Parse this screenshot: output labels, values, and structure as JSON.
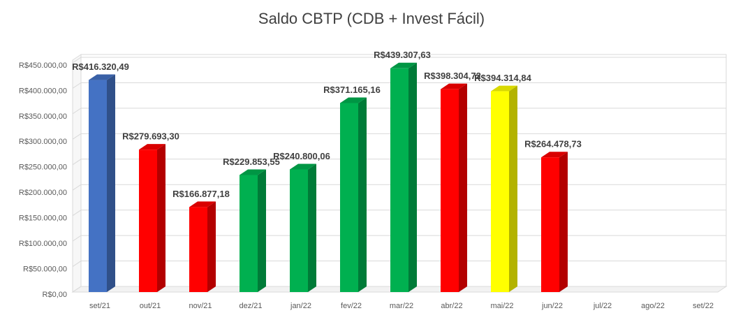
{
  "chart_data": {
    "type": "bar3d",
    "title": "Saldo CBTP (CDB + Invest Fácil)",
    "categories": [
      "set/21",
      "out/21",
      "nov/21",
      "dez/21",
      "jan/22",
      "fev/22",
      "mar/22",
      "abr/22",
      "mai/22",
      "jun/22",
      "jul/22",
      "ago/22",
      "set/22"
    ],
    "values": [
      416320.49,
      279693.3,
      166877.18,
      229853.55,
      240800.06,
      371165.16,
      439307.63,
      398304.72,
      394314.84,
      264478.73,
      null,
      null,
      null
    ],
    "value_labels": [
      "R$416.320,49",
      "R$279.693,30",
      "R$166.877,18",
      "R$229.853,55",
      "R$240.800,06",
      "R$371.165,16",
      "R$439.307,63",
      "R$398.304,72",
      "R$394.314,84",
      "R$264.478,73",
      null,
      null,
      null
    ],
    "colors": [
      "#4472c4",
      "#ff0000",
      "#ff0000",
      "#00b050",
      "#00b050",
      "#00b050",
      "#00b050",
      "#ff0000",
      "#ffff00",
      "#ff0000",
      null,
      null,
      null
    ],
    "ylim": [
      0,
      450000
    ],
    "yticks": [
      {
        "value": 0,
        "label": "R$0,00"
      },
      {
        "value": 50000,
        "label": "R$50.000,00"
      },
      {
        "value": 100000,
        "label": "R$100.000,00"
      },
      {
        "value": 150000,
        "label": "R$150.000,00"
      },
      {
        "value": 200000,
        "label": "R$200.000,00"
      },
      {
        "value": 250000,
        "label": "R$250.000,00"
      },
      {
        "value": 300000,
        "label": "R$300.000,00"
      },
      {
        "value": 350000,
        "label": "R$350.000,00"
      },
      {
        "value": 400000,
        "label": "R$400.000,00"
      },
      {
        "value": 450000,
        "label": "R$450.000,00"
      }
    ],
    "grid": true
  }
}
